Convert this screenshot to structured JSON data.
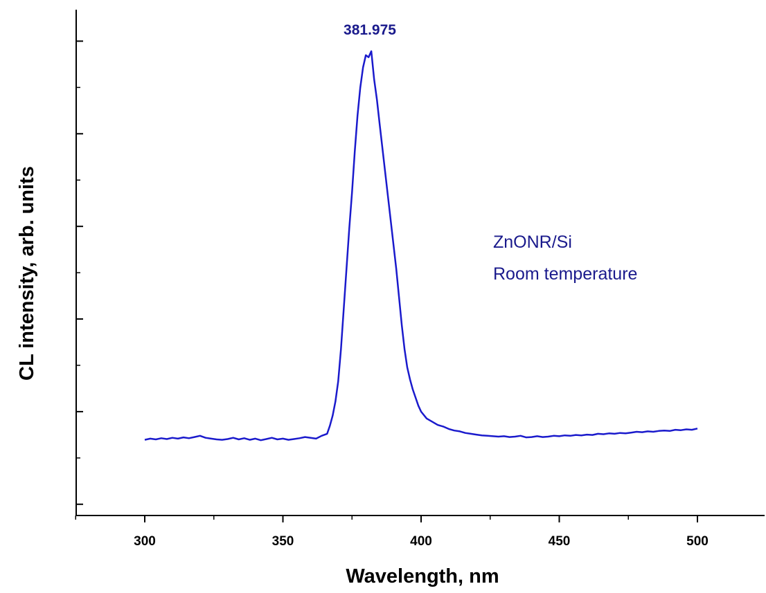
{
  "chart_data": {
    "type": "line",
    "title": "",
    "xlabel": "Wavelength, nm",
    "ylabel": "CL intensity, arb. units",
    "xlim": [
      275,
      525
    ],
    "ylim": [
      0,
      10
    ],
    "x_ticks": [
      300,
      350,
      400,
      450,
      500
    ],
    "x_tick_labels": [
      "300",
      "350",
      "400",
      "450",
      "500"
    ],
    "y_tick_labels_shown": false,
    "grid": false,
    "legend": "none",
    "line_color": "#1a1acc",
    "text_color": "#1a1a8c",
    "peak_label": "381.975",
    "annotation_lines": [
      "ZnONR/Si",
      "Room temperature"
    ],
    "series": [
      {
        "x": [
          300,
          302,
          304,
          306,
          308,
          310,
          312,
          314,
          316,
          318,
          320,
          322,
          324,
          326,
          328,
          330,
          332,
          334,
          336,
          338,
          340,
          342,
          344,
          346,
          348,
          350,
          352,
          354,
          356,
          358,
          360,
          362,
          364,
          366,
          367,
          368,
          369,
          370,
          371,
          372,
          373,
          374,
          375,
          376,
          377,
          378,
          379,
          380,
          381,
          381.975,
          383,
          384,
          385,
          386,
          387,
          388,
          389,
          390,
          391,
          392,
          393,
          394,
          395,
          396,
          397,
          398,
          399,
          400,
          402,
          404,
          406,
          408,
          410,
          412,
          414,
          416,
          418,
          420,
          422,
          424,
          426,
          428,
          430,
          432,
          434,
          436,
          438,
          440,
          442,
          444,
          446,
          448,
          450,
          452,
          454,
          456,
          458,
          460,
          462,
          464,
          466,
          468,
          470,
          472,
          474,
          476,
          478,
          480,
          482,
          484,
          486,
          488,
          490,
          492,
          494,
          496,
          498,
          500
        ],
        "y": [
          0.35,
          0.38,
          0.36,
          0.39,
          0.37,
          0.4,
          0.38,
          0.41,
          0.39,
          0.42,
          0.45,
          0.4,
          0.38,
          0.36,
          0.35,
          0.37,
          0.4,
          0.36,
          0.39,
          0.35,
          0.38,
          0.34,
          0.37,
          0.4,
          0.36,
          0.38,
          0.35,
          0.37,
          0.39,
          0.42,
          0.4,
          0.38,
          0.45,
          0.5,
          0.7,
          0.95,
          1.3,
          1.8,
          2.6,
          3.6,
          4.6,
          5.6,
          6.5,
          7.5,
          8.4,
          9.1,
          9.6,
          9.9,
          9.85,
          10.0,
          9.3,
          8.8,
          8.2,
          7.6,
          7.0,
          6.4,
          5.8,
          5.2,
          4.6,
          3.9,
          3.2,
          2.6,
          2.15,
          1.85,
          1.6,
          1.4,
          1.2,
          1.05,
          0.88,
          0.8,
          0.72,
          0.68,
          0.62,
          0.58,
          0.56,
          0.52,
          0.5,
          0.48,
          0.46,
          0.45,
          0.44,
          0.43,
          0.44,
          0.42,
          0.43,
          0.45,
          0.41,
          0.42,
          0.44,
          0.42,
          0.43,
          0.45,
          0.44,
          0.46,
          0.45,
          0.47,
          0.46,
          0.48,
          0.47,
          0.5,
          0.49,
          0.51,
          0.5,
          0.52,
          0.51,
          0.53,
          0.55,
          0.54,
          0.56,
          0.55,
          0.57,
          0.58,
          0.57,
          0.6,
          0.59,
          0.61,
          0.6,
          0.63
        ]
      }
    ]
  }
}
